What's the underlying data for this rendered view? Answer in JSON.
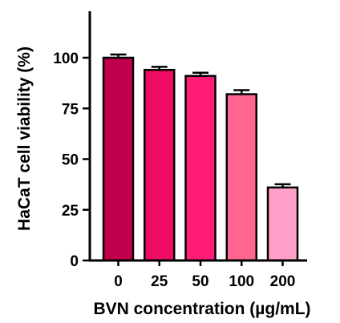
{
  "chart_data": {
    "type": "bar",
    "title": "",
    "xlabel": "BVN concentration (µg/mL)",
    "ylabel": "HaCaT cell viability (%)",
    "categories": [
      "0",
      "25",
      "50",
      "100",
      "200"
    ],
    "values": [
      100,
      94,
      91,
      82,
      36
    ],
    "error_bars": [
      1.6,
      1.5,
      1.6,
      2.0,
      1.6
    ],
    "ylim": [
      0,
      125
    ],
    "yticks": [
      "0",
      "25",
      "50",
      "75",
      "100"
    ],
    "bar_colors": [
      "#C0004C",
      "#EE0C64",
      "#FF1B78",
      "#FF6692",
      "#FFA0C8"
    ],
    "grid": false
  }
}
